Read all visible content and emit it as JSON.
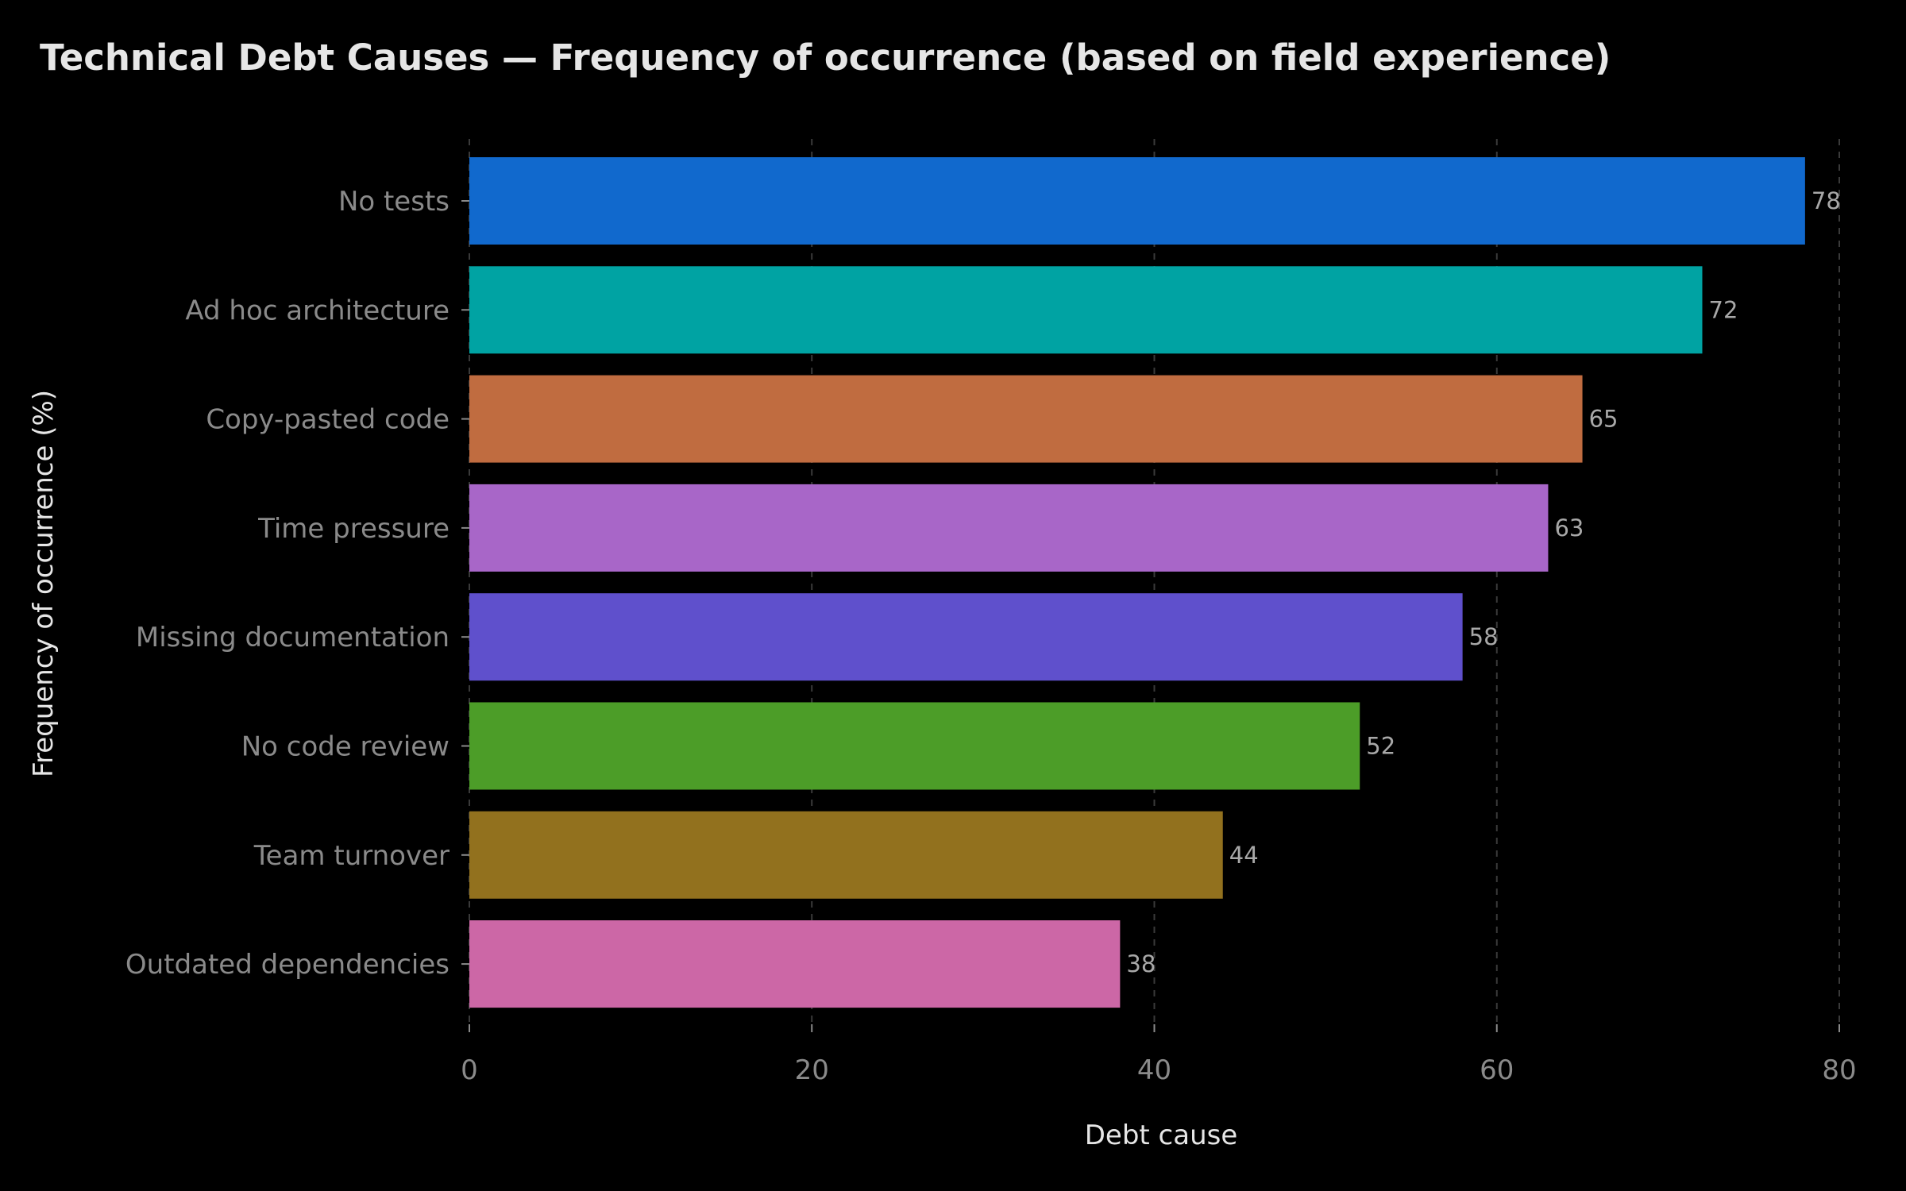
{
  "chart_data": {
    "type": "bar",
    "orientation": "horizontal",
    "title": "Technical Debt Causes — Frequency of occurrence (based on field experience)",
    "xlabel": "Debt cause",
    "ylabel": "Frequency of occurrence (%)",
    "xlim": [
      0,
      80
    ],
    "xticks": [
      0,
      20,
      40,
      60,
      80
    ],
    "grid": "vertical dashed",
    "categories": [
      "No tests",
      "Ad hoc architecture",
      "Copy-pasted code",
      "Time pressure",
      "Missing documentation",
      "No code review",
      "Team turnover",
      "Outdated dependencies"
    ],
    "values": [
      78,
      72,
      65,
      63,
      58,
      52,
      44,
      38
    ],
    "colors": [
      "#1169cd",
      "#00a3a3",
      "#c06c40",
      "#a866c8",
      "#5f50cc",
      "#4c9d28",
      "#92711e",
      "#cc67a6"
    ]
  }
}
